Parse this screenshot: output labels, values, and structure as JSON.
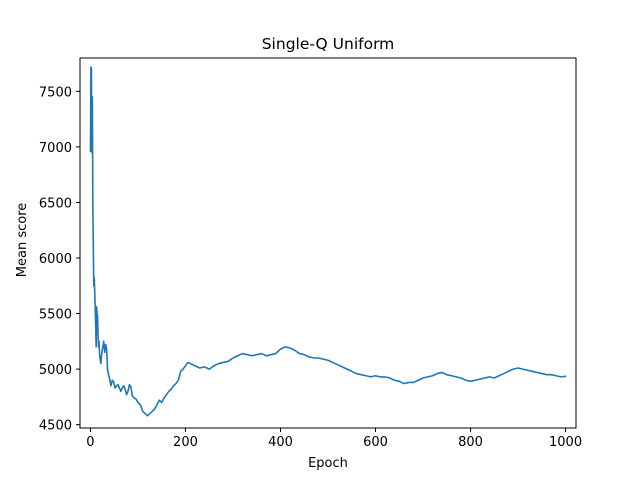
{
  "chart_data": {
    "type": "line",
    "title": "Single-Q Uniform",
    "xlabel": "Epoch",
    "ylabel": "Mean score",
    "xlim": [
      -22,
      1022
    ],
    "ylim": [
      4470,
      7800
    ],
    "xticks": [
      0,
      200,
      400,
      600,
      800,
      1000
    ],
    "yticks": [
      4500,
      5000,
      5500,
      6000,
      6500,
      7000,
      7500
    ],
    "grid": false,
    "legend": "none",
    "series": [
      {
        "color": "#1f77b4",
        "x": [
          0,
          1,
          2,
          3,
          4,
          5,
          6,
          7,
          8,
          9,
          10,
          11,
          12,
          13,
          14,
          15,
          16,
          17,
          18,
          19,
          20,
          22,
          24,
          26,
          28,
          30,
          32,
          34,
          36,
          38,
          40,
          43,
          46,
          49,
          52,
          55,
          58,
          61,
          64,
          67,
          70,
          73,
          76,
          79,
          82,
          85,
          88,
          92,
          96,
          100,
          105,
          110,
          115,
          120,
          125,
          130,
          135,
          140,
          145,
          150,
          155,
          160,
          165,
          170,
          175,
          180,
          185,
          190,
          195,
          200,
          205,
          210,
          220,
          230,
          240,
          250,
          260,
          270,
          280,
          290,
          300,
          310,
          320,
          330,
          340,
          350,
          360,
          370,
          380,
          390,
          400,
          410,
          420,
          430,
          440,
          450,
          460,
          470,
          480,
          490,
          500,
          510,
          520,
          530,
          540,
          550,
          560,
          570,
          580,
          590,
          600,
          610,
          620,
          630,
          640,
          650,
          660,
          670,
          680,
          690,
          700,
          710,
          720,
          730,
          740,
          750,
          760,
          770,
          780,
          790,
          800,
          810,
          820,
          830,
          840,
          850,
          860,
          870,
          880,
          890,
          900,
          910,
          920,
          930,
          940,
          950,
          960,
          970,
          980,
          990,
          1000
        ],
        "y": [
          6960,
          7720,
          7700,
          6950,
          7450,
          6500,
          6100,
          5750,
          5820,
          5700,
          5550,
          5400,
          5200,
          5560,
          5500,
          5480,
          5300,
          5200,
          5250,
          5150,
          5100,
          5050,
          5150,
          5200,
          5250,
          5150,
          5220,
          5180,
          5000,
          4950,
          4920,
          4850,
          4900,
          4880,
          4830,
          4850,
          4860,
          4830,
          4800,
          4830,
          4850,
          4820,
          4770,
          4800,
          4860,
          4840,
          4760,
          4740,
          4730,
          4700,
          4680,
          4620,
          4600,
          4580,
          4600,
          4620,
          4640,
          4680,
          4720,
          4700,
          4740,
          4770,
          4800,
          4820,
          4850,
          4870,
          4900,
          4980,
          5000,
          5030,
          5060,
          5050,
          5030,
          5010,
          5020,
          5000,
          5030,
          5050,
          5060,
          5070,
          5100,
          5120,
          5140,
          5130,
          5120,
          5130,
          5140,
          5120,
          5130,
          5140,
          5180,
          5200,
          5190,
          5170,
          5140,
          5130,
          5110,
          5100,
          5100,
          5090,
          5080,
          5060,
          5040,
          5020,
          5000,
          4980,
          4960,
          4950,
          4940,
          4930,
          4940,
          4930,
          4930,
          4920,
          4900,
          4890,
          4870,
          4880,
          4880,
          4900,
          4920,
          4930,
          4940,
          4960,
          4970,
          4950,
          4940,
          4930,
          4920,
          4900,
          4890,
          4900,
          4910,
          4920,
          4930,
          4920,
          4940,
          4960,
          4980,
          5000,
          5010,
          5000,
          4990,
          4980,
          4970,
          4960,
          4950,
          4950,
          4940,
          4930,
          4935
        ]
      }
    ]
  }
}
